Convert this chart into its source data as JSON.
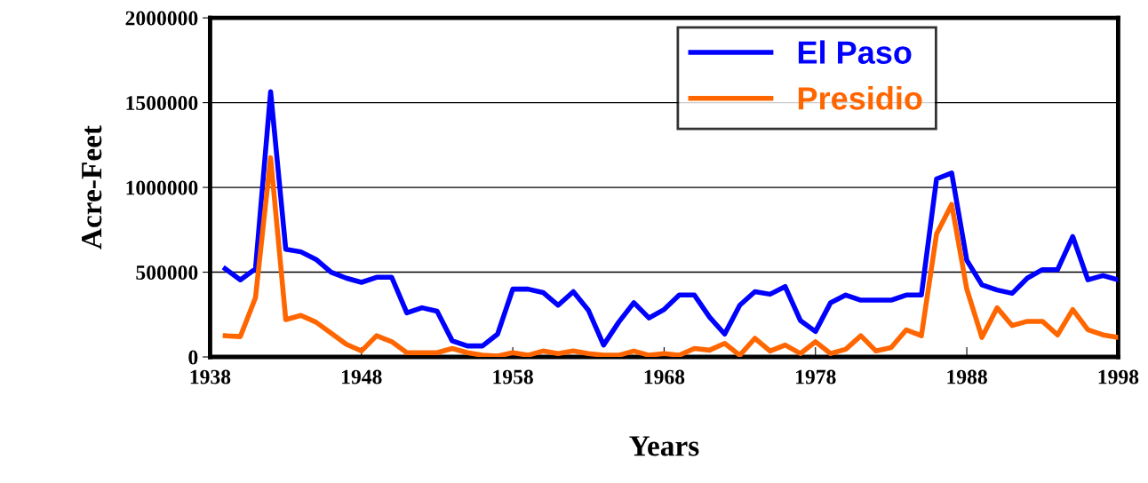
{
  "chart_data": {
    "type": "line",
    "xlabel": "Years",
    "ylabel": "Acre-Feet",
    "x": [
      1939,
      1940,
      1941,
      1942,
      1943,
      1944,
      1945,
      1946,
      1947,
      1948,
      1949,
      1950,
      1951,
      1952,
      1953,
      1954,
      1955,
      1956,
      1957,
      1958,
      1959,
      1960,
      1961,
      1962,
      1963,
      1964,
      1965,
      1966,
      1967,
      1968,
      1969,
      1970,
      1971,
      1972,
      1973,
      1974,
      1975,
      1976,
      1977,
      1978,
      1979,
      1980,
      1981,
      1982,
      1983,
      1984,
      1985,
      1986,
      1987,
      1988,
      1989,
      1990,
      1991,
      1992,
      1993,
      1994,
      1995,
      1996,
      1997,
      1998
    ],
    "series": [
      {
        "name": "El Paso",
        "color": "#0000ff",
        "values": [
          520000,
          455000,
          520000,
          1565000,
          635000,
          620000,
          575000,
          500000,
          465000,
          440000,
          470000,
          470000,
          260000,
          290000,
          270000,
          95000,
          65000,
          65000,
          135000,
          400000,
          400000,
          380000,
          305000,
          385000,
          275000,
          70000,
          205000,
          320000,
          230000,
          280000,
          365000,
          365000,
          235000,
          135000,
          305000,
          385000,
          370000,
          415000,
          215000,
          150000,
          320000,
          365000,
          335000,
          335000,
          335000,
          365000,
          365000,
          1050000,
          1085000,
          570000,
          425000,
          395000,
          375000,
          465000,
          515000,
          515000,
          710000,
          455000,
          480000,
          455000
        ]
      },
      {
        "name": "Presidio",
        "color": "#ff6600",
        "values": [
          125000,
          120000,
          350000,
          1175000,
          220000,
          245000,
          205000,
          140000,
          75000,
          35000,
          125000,
          90000,
          25000,
          25000,
          25000,
          50000,
          25000,
          10000,
          5000,
          25000,
          10000,
          35000,
          20000,
          35000,
          20000,
          10000,
          10000,
          35000,
          10000,
          20000,
          10000,
          50000,
          40000,
          80000,
          10000,
          110000,
          35000,
          70000,
          20000,
          90000,
          20000,
          45000,
          125000,
          35000,
          55000,
          160000,
          125000,
          725000,
          900000,
          400000,
          115000,
          290000,
          185000,
          210000,
          210000,
          130000,
          280000,
          160000,
          130000,
          115000
        ]
      }
    ],
    "xlim": [
      1938,
      1998
    ],
    "xticks": [
      1938,
      1948,
      1958,
      1968,
      1978,
      1988,
      1998
    ],
    "ylim": [
      0,
      2000000
    ],
    "yticks": [
      0,
      500000,
      1000000,
      1500000,
      2000000
    ],
    "grid": "y",
    "legend": "top right",
    "marker": "none",
    "line_style": "solid"
  }
}
